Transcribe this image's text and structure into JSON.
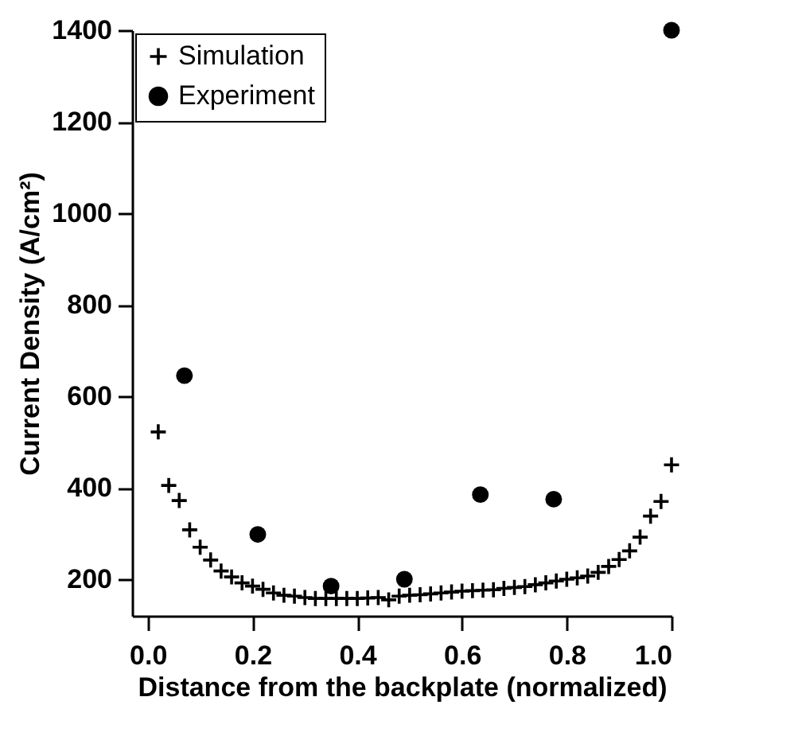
{
  "chart_data": {
    "type": "scatter",
    "xlabel": "Distance from the backplate (normalized)",
    "ylabel": "Current Density (A/cm²)",
    "xlim": [
      -0.03,
      1.0
    ],
    "xticks": [
      {
        "value": 0,
        "label": "0.0"
      },
      {
        "value": 0.2,
        "label": "0.2"
      },
      {
        "value": 0.4,
        "label": "0.4"
      },
      {
        "value": 0.6,
        "label": "0.6"
      },
      {
        "value": 0.8,
        "label": "0.8"
      },
      {
        "value": 1,
        "label": "1.0"
      }
    ],
    "ylim": [
      120,
      1400
    ],
    "yticks": [
      200,
      400,
      600,
      800,
      {
        "value": 1000,
        "label": "1000"
      },
      {
        "value": 1200,
        "label": "1200"
      },
      {
        "value": 1400,
        "label": "1400"
      }
    ],
    "legend": "top left",
    "grid": false,
    "series": [
      {
        "name": "Simulation",
        "color": "#000000",
        "marker": "cross",
        "x": [
          0.02,
          0.04,
          0.06,
          0.08,
          0.1,
          0.12,
          0.14,
          0.16,
          0.18,
          0.2,
          0.22,
          0.24,
          0.26,
          0.28,
          0.3,
          0.32,
          0.34,
          0.36,
          0.38,
          0.4,
          0.42,
          0.44,
          0.46,
          0.48,
          0.5,
          0.52,
          0.54,
          0.56,
          0.58,
          0.6,
          0.62,
          0.64,
          0.66,
          0.68,
          0.7,
          0.72,
          0.74,
          0.76,
          0.78,
          0.8,
          0.82,
          0.84,
          0.86,
          0.88,
          0.9,
          0.92,
          0.94,
          0.96,
          0.98,
          1.0
        ],
        "values": [
          522,
          405,
          372,
          308,
          270,
          242,
          218,
          205,
          192,
          185,
          178,
          170,
          165,
          163,
          160,
          158,
          158,
          158,
          158,
          158,
          159,
          160,
          155,
          163,
          165,
          166,
          168,
          170,
          172,
          174,
          175,
          176,
          177,
          180,
          182,
          184,
          188,
          192,
          196,
          200,
          203,
          207,
          215,
          228,
          243,
          262,
          292,
          338,
          370,
          450
        ]
      },
      {
        "name": "Experiment",
        "color": "#000000",
        "marker": "circle",
        "x": [
          0.07,
          0.21,
          0.35,
          0.49,
          0.635,
          0.775,
          1.0
        ],
        "values": [
          645,
          298,
          185,
          200,
          385,
          375,
          1400
        ]
      }
    ]
  }
}
